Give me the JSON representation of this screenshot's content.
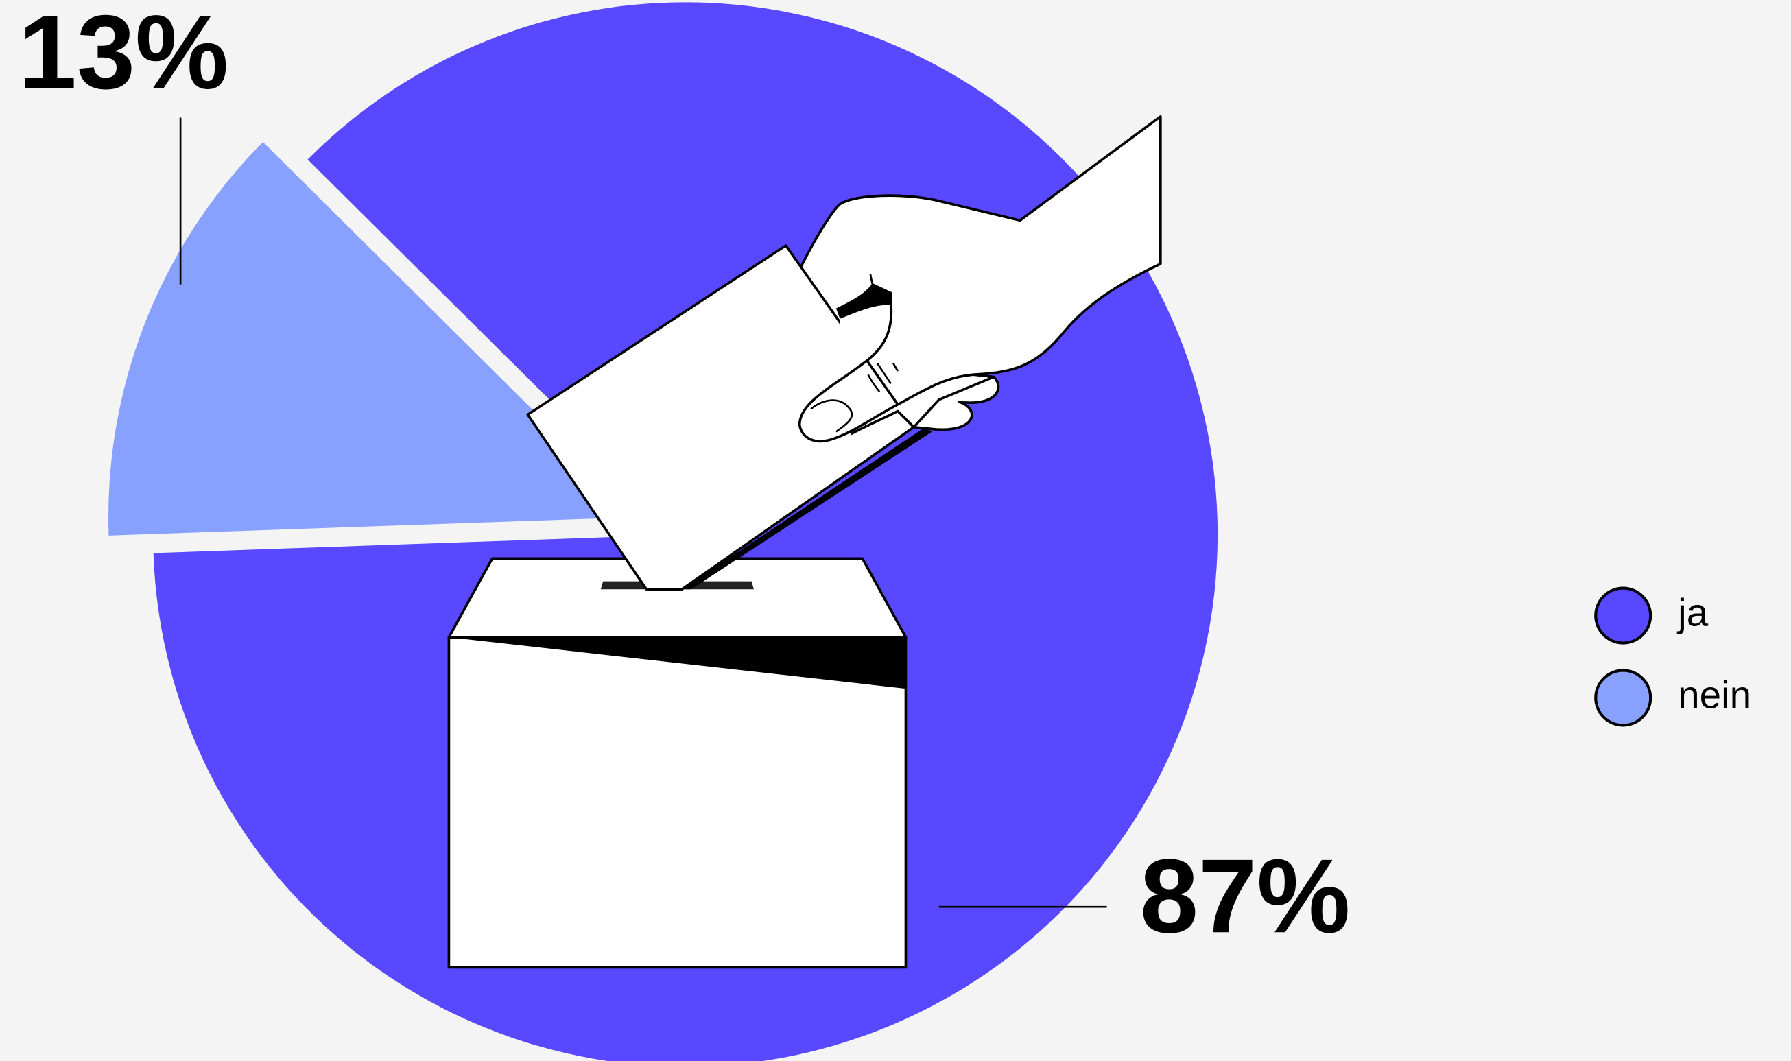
{
  "chart_data": {
    "type": "pie",
    "categories": [
      "ja",
      "nein"
    ],
    "values": [
      87,
      13
    ],
    "value_labels": [
      "87%",
      "13%"
    ],
    "colors": [
      "#5848ff",
      "#89a1fe"
    ],
    "legend": "right"
  }
}
